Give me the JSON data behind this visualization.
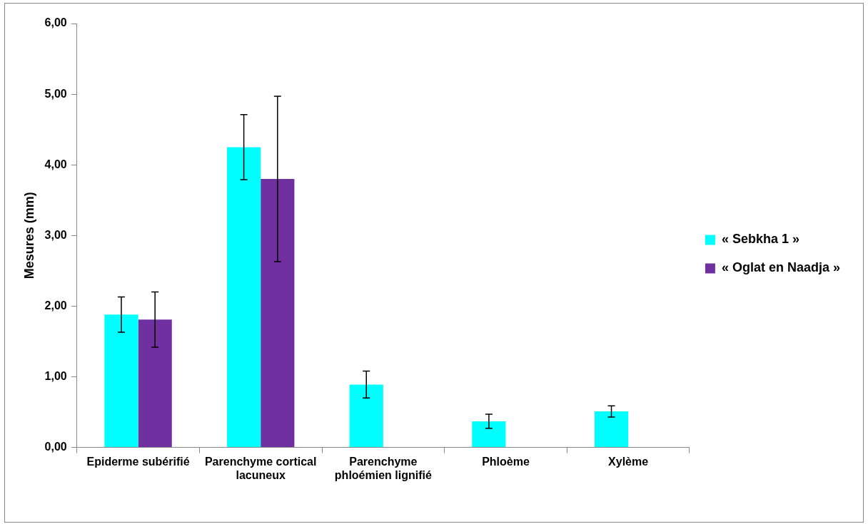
{
  "chart_data": {
    "type": "bar",
    "ylabel": "Mesures (mm)",
    "categories": [
      "Epiderme subérifié",
      "Parenchyme cortical lacuneux",
      "Parenchyme phloémien lignifié",
      "Phloème",
      "Xylème"
    ],
    "series": [
      {
        "name": "« Sebkha 1 »",
        "color": "#00ffff",
        "values": [
          1.88,
          4.25,
          0.89,
          0.37,
          0.51
        ],
        "errors": [
          0.25,
          0.46,
          0.19,
          0.1,
          0.08
        ]
      },
      {
        "name": "« Oglat en Naadja »",
        "color": "#7030a0",
        "values": [
          1.81,
          3.8,
          null,
          null,
          null
        ],
        "errors": [
          0.39,
          1.17,
          null,
          null,
          null
        ]
      }
    ],
    "ylim": [
      0,
      6
    ],
    "yticks": [
      {
        "value": 0,
        "label": "0,00"
      },
      {
        "value": 1,
        "label": "1,00"
      },
      {
        "value": 2,
        "label": "2,00"
      },
      {
        "value": 3,
        "label": "3,00"
      },
      {
        "value": 4,
        "label": "4,00"
      },
      {
        "value": 5,
        "label": "5,00"
      },
      {
        "value": 6,
        "label": "6,00"
      }
    ],
    "grid": false,
    "legend": "right"
  }
}
